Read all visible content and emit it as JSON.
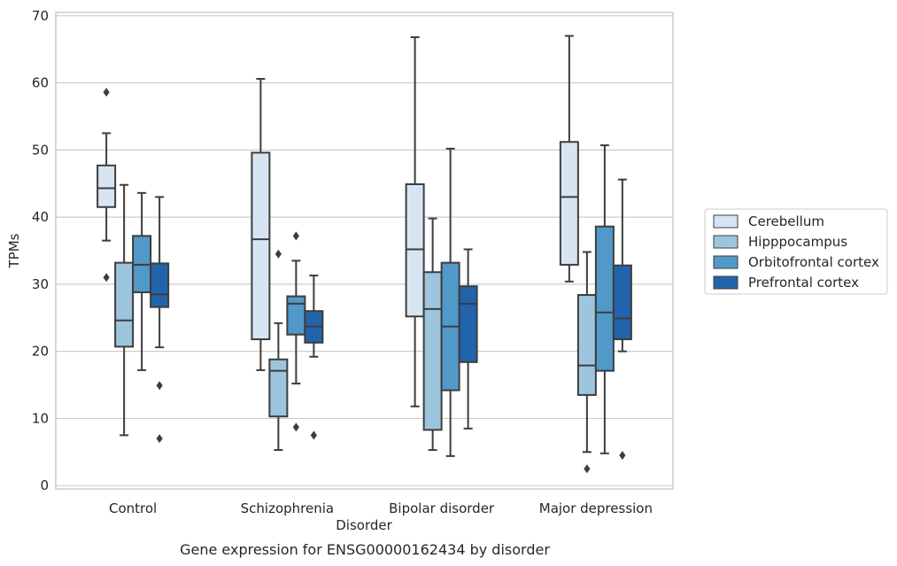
{
  "chart_data": {
    "type": "box",
    "caption": "Gene expression for ENSG00000162434 by disorder",
    "xlabel": "Disorder",
    "ylabel": "TPMs",
    "ylim": [
      -0.5,
      70.5
    ],
    "yticks": [
      0,
      10,
      20,
      30,
      40,
      50,
      60,
      70
    ],
    "grid": "horizontal",
    "legend_position": "right",
    "categories": [
      "Control",
      "Schizophrenia",
      "Bipolar disorder",
      "Major depression"
    ],
    "series": [
      {
        "name": "Cerebellum",
        "color": "#d7e5f3",
        "boxes": [
          {
            "whisker_low": 36.5,
            "q1": 41.5,
            "median": 44.3,
            "q3": 47.7,
            "whisker_high": 52.5,
            "outliers": [
              58.6,
              31.0
            ]
          },
          {
            "whisker_low": 17.2,
            "q1": 21.8,
            "median": 36.7,
            "q3": 49.6,
            "whisker_high": 60.6,
            "outliers": []
          },
          {
            "whisker_low": 11.8,
            "q1": 25.2,
            "median": 35.2,
            "q3": 44.9,
            "whisker_high": 66.8,
            "outliers": []
          },
          {
            "whisker_low": 30.4,
            "q1": 32.9,
            "median": 43.0,
            "q3": 51.2,
            "whisker_high": 67.0,
            "outliers": []
          }
        ]
      },
      {
        "name": "Hipppocampus",
        "color": "#9dc5de",
        "boxes": [
          {
            "whisker_low": 7.5,
            "q1": 20.7,
            "median": 24.6,
            "q3": 33.2,
            "whisker_high": 44.8,
            "outliers": []
          },
          {
            "whisker_low": 5.3,
            "q1": 10.3,
            "median": 17.1,
            "q3": 18.8,
            "whisker_high": 24.2,
            "outliers": [
              34.5
            ]
          },
          {
            "whisker_low": 5.3,
            "q1": 8.3,
            "median": 26.3,
            "q3": 31.8,
            "whisker_high": 39.8,
            "outliers": []
          },
          {
            "whisker_low": 5.0,
            "q1": 13.5,
            "median": 17.9,
            "q3": 28.4,
            "whisker_high": 34.8,
            "outliers": [
              2.5
            ]
          }
        ]
      },
      {
        "name": "Orbitofrontal cortex",
        "color": "#5199c9",
        "boxes": [
          {
            "whisker_low": 17.2,
            "q1": 28.8,
            "median": 32.9,
            "q3": 37.2,
            "whisker_high": 43.6,
            "outliers": []
          },
          {
            "whisker_low": 15.2,
            "q1": 22.5,
            "median": 27.1,
            "q3": 28.2,
            "whisker_high": 33.5,
            "outliers": [
              37.2,
              8.7
            ]
          },
          {
            "whisker_low": 4.4,
            "q1": 14.2,
            "median": 23.7,
            "q3": 33.2,
            "whisker_high": 50.2,
            "outliers": []
          },
          {
            "whisker_low": 4.8,
            "q1": 17.1,
            "median": 25.8,
            "q3": 38.6,
            "whisker_high": 50.7,
            "outliers": []
          }
        ]
      },
      {
        "name": "Prefrontal cortex",
        "color": "#2264ab",
        "boxes": [
          {
            "whisker_low": 20.6,
            "q1": 26.6,
            "median": 28.5,
            "q3": 33.1,
            "whisker_high": 43.0,
            "outliers": [
              14.9,
              7.0
            ]
          },
          {
            "whisker_low": 19.2,
            "q1": 21.3,
            "median": 23.7,
            "q3": 26.0,
            "whisker_high": 31.3,
            "outliers": [
              7.5
            ]
          },
          {
            "whisker_low": 8.5,
            "q1": 18.4,
            "median": 27.1,
            "q3": 29.7,
            "whisker_high": 35.2,
            "outliers": []
          },
          {
            "whisker_low": 20.0,
            "q1": 21.8,
            "median": 24.9,
            "q3": 32.8,
            "whisker_high": 45.6,
            "outliers": [
              4.5
            ]
          }
        ]
      }
    ]
  }
}
